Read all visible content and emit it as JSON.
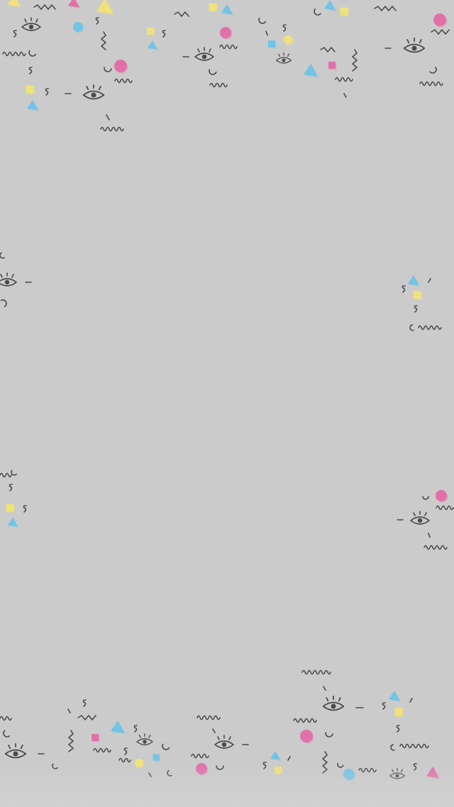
{
  "screen": {
    "type": "wallpaper",
    "background_color": "#cbcbcb"
  },
  "pattern": {
    "style": "memphis doodles",
    "ink_color": "#4a4a4a",
    "colors": {
      "pink": "#e26fa8",
      "blue": "#73c3e6",
      "yellow": "#f0e27a"
    },
    "icon_names": [
      "eye-icon",
      "squiggle-icon",
      "triangle-icon",
      "square-icon",
      "circle-icon",
      "arc-icon",
      "dash-icon",
      "s-curve-icon"
    ]
  }
}
